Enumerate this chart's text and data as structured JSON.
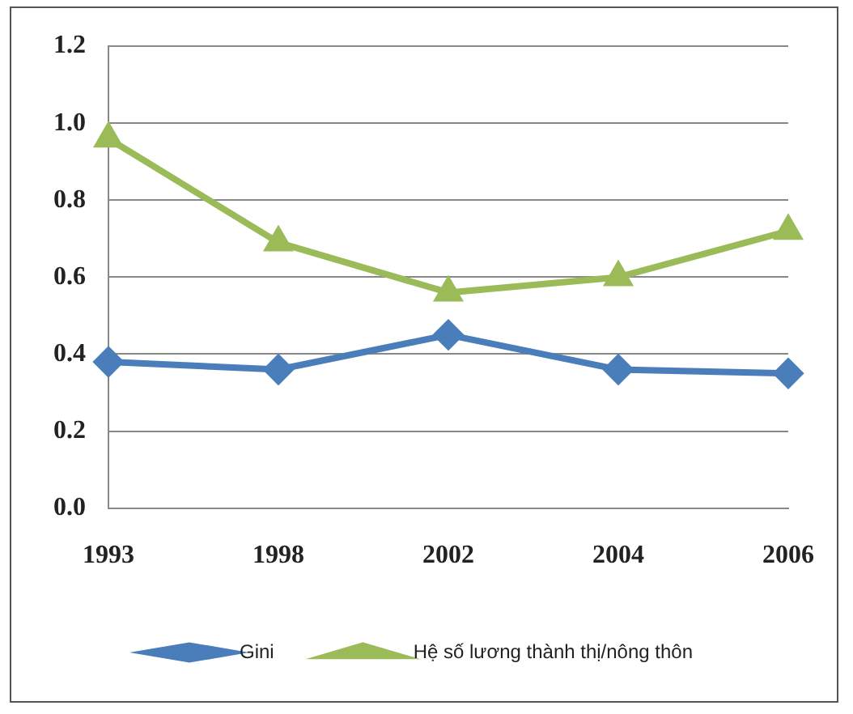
{
  "chart_data": {
    "type": "line",
    "categories": [
      "1993",
      "1998",
      "2002",
      "2004",
      "2006"
    ],
    "series": [
      {
        "name": "Gini",
        "color": "#4a7ebb",
        "marker": "diamond",
        "values": [
          0.38,
          0.36,
          0.45,
          0.36,
          0.35
        ]
      },
      {
        "name": "Hệ số lương thành thị/nông thôn",
        "color": "#9bbb59",
        "marker": "triangle",
        "values": [
          0.96,
          0.69,
          0.56,
          0.6,
          0.72
        ]
      }
    ],
    "ylim": [
      0,
      1.2
    ],
    "yticks": [
      {
        "value": 0,
        "label": "0.0"
      },
      {
        "value": 0.2,
        "label": "0.2"
      },
      {
        "value": 0.4,
        "label": "0.4"
      },
      {
        "value": 0.6,
        "label": "0.6"
      },
      {
        "value": 0.8,
        "label": "0.8"
      },
      {
        "value": 1,
        "label": "1.0"
      },
      {
        "value": 1.2,
        "label": "1.2"
      }
    ],
    "grid": "y",
    "legend": "bottom"
  }
}
